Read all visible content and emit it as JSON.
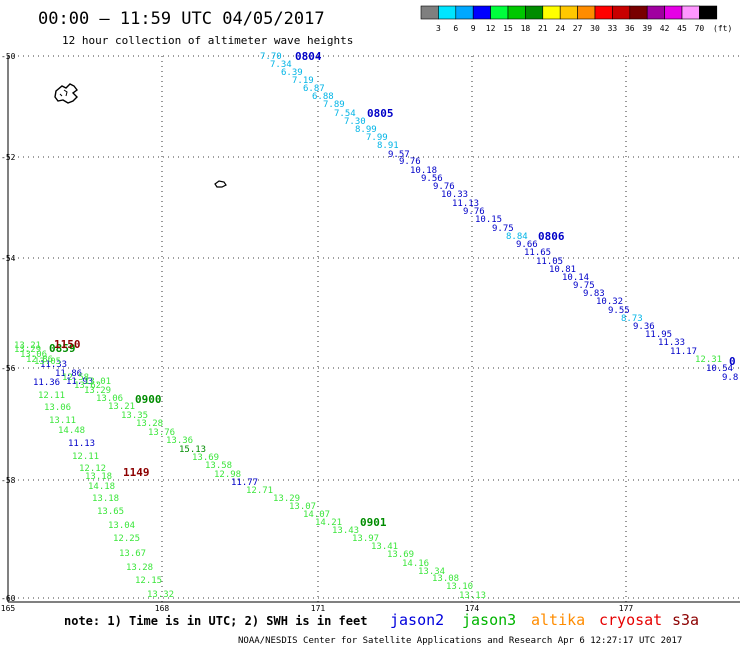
{
  "header": {
    "title": "00:00 — 11:59 UTC 04/05/2017",
    "subtitle": "12 hour collection of altimeter wave heights"
  },
  "legend": {
    "unit": "(ft)",
    "bins": [
      {
        "label": "3",
        "color": "#7f7f7f"
      },
      {
        "label": "6",
        "color": "#00e5ff"
      },
      {
        "label": "9",
        "color": "#00a8ff"
      },
      {
        "label": "12",
        "color": "#0000ff"
      },
      {
        "label": "15",
        "color": "#00ff3c"
      },
      {
        "label": "18",
        "color": "#00c800"
      },
      {
        "label": "21",
        "color": "#008c00"
      },
      {
        "label": "24",
        "color": "#ffff00"
      },
      {
        "label": "27",
        "color": "#ffc800"
      },
      {
        "label": "30",
        "color": "#ff8c00"
      },
      {
        "label": "33",
        "color": "#ff0000"
      },
      {
        "label": "36",
        "color": "#c80000"
      },
      {
        "label": "39",
        "color": "#780000"
      },
      {
        "label": "42",
        "color": "#a000a0"
      },
      {
        "label": "45",
        "color": "#e600e6"
      },
      {
        "label": "70",
        "color": "#ff96ff"
      },
      {
        "label": "",
        "color": "#000000"
      }
    ]
  },
  "axes": {
    "lat_labels": [
      "-50",
      "-52",
      "-54",
      "-56",
      "-58",
      "-60"
    ],
    "lon_labels": [
      "165",
      "168",
      "171",
      "174",
      "177"
    ]
  },
  "tracks": [
    {
      "name": "track-0804",
      "time_labels": [
        {
          "text": "0804",
          "color": "#0000c8"
        },
        {
          "text": "0805",
          "color": "#0000c8"
        },
        {
          "text": "0806",
          "color": "#0000c8"
        },
        {
          "text": "0",
          "color": "#0000c8"
        }
      ],
      "observations": [
        {
          "text": "7.70",
          "color": "#00b4e6"
        },
        {
          "text": "7.34",
          "color": "#00b4e6"
        },
        {
          "text": "6.39",
          "color": "#00b4e6"
        },
        {
          "text": "7.19",
          "color": "#00b4e6"
        },
        {
          "text": "6.87",
          "color": "#00b4e6"
        },
        {
          "text": "6.88",
          "color": "#00b4e6"
        },
        {
          "text": "7.89",
          "color": "#00b4e6"
        },
        {
          "text": "7.54",
          "color": "#00b4e6"
        },
        {
          "text": "7.30",
          "color": "#00b4e6"
        },
        {
          "text": "8.99",
          "color": "#00b4e6"
        },
        {
          "text": "7.99",
          "color": "#00b4e6"
        },
        {
          "text": "8.91",
          "color": "#00b4e6"
        },
        {
          "text": "9.57",
          "color": "#0000c8"
        },
        {
          "text": "9.76",
          "color": "#0000c8"
        },
        {
          "text": "10.18",
          "color": "#0000c8"
        },
        {
          "text": "9.56",
          "color": "#0000c8"
        },
        {
          "text": "9.76",
          "color": "#0000c8"
        },
        {
          "text": "10.33",
          "color": "#0000c8"
        },
        {
          "text": "11.13",
          "color": "#0000c8"
        },
        {
          "text": "9.76",
          "color": "#0000c8"
        },
        {
          "text": "10.15",
          "color": "#0000c8"
        },
        {
          "text": "9.75",
          "color": "#0000c8"
        },
        {
          "text": "8.84",
          "color": "#00b4e6"
        },
        {
          "text": "9.66",
          "color": "#0000c8"
        },
        {
          "text": "11.65",
          "color": "#0000c8"
        },
        {
          "text": "11.05",
          "color": "#0000c8"
        },
        {
          "text": "10.81",
          "color": "#0000c8"
        },
        {
          "text": "10.14",
          "color": "#0000c8"
        },
        {
          "text": "9.75",
          "color": "#0000c8"
        },
        {
          "text": "9.83",
          "color": "#0000c8"
        },
        {
          "text": "10.32",
          "color": "#0000c8"
        },
        {
          "text": "9.55",
          "color": "#0000c8"
        },
        {
          "text": "8.73",
          "color": "#00b4e6"
        },
        {
          "text": "9.36",
          "color": "#0000c8"
        },
        {
          "text": "11.95",
          "color": "#0000c8"
        },
        {
          "text": "11.33",
          "color": "#0000c8"
        },
        {
          "text": "11.17",
          "color": "#0000c8"
        },
        {
          "text": "12.31",
          "color": "#3ce63c"
        },
        {
          "text": "10.54",
          "color": "#0000c8"
        },
        {
          "text": "9.8",
          "color": "#0000c8"
        }
      ]
    },
    {
      "name": "track-0900",
      "time_labels": [
        {
          "text": "0859",
          "color": "#008c00"
        },
        {
          "text": "0900",
          "color": "#008c00"
        },
        {
          "text": "0901",
          "color": "#008c00"
        }
      ],
      "observations": [
        {
          "text": "13.06",
          "color": "#3ce63c"
        },
        {
          "text": "13.21",
          "color": "#3ce63c"
        },
        {
          "text": "13.35",
          "color": "#3ce63c"
        },
        {
          "text": "13.28",
          "color": "#3ce63c"
        },
        {
          "text": "13.76",
          "color": "#3ce63c"
        },
        {
          "text": "13.36",
          "color": "#3ce63c"
        },
        {
          "text": "15.13",
          "color": "#008c00"
        },
        {
          "text": "13.69",
          "color": "#3ce63c"
        },
        {
          "text": "13.58",
          "color": "#3ce63c"
        },
        {
          "text": "12.98",
          "color": "#3ce63c"
        },
        {
          "text": "11.77",
          "color": "#0000c8"
        },
        {
          "text": "12.71",
          "color": "#3ce63c"
        },
        {
          "text": "13.29",
          "color": "#3ce63c"
        },
        {
          "text": "13.07",
          "color": "#3ce63c"
        },
        {
          "text": "14.07",
          "color": "#3ce63c"
        },
        {
          "text": "14.21",
          "color": "#3ce63c"
        },
        {
          "text": "13.43",
          "color": "#3ce63c"
        },
        {
          "text": "13.97",
          "color": "#3ce63c"
        },
        {
          "text": "13.41",
          "color": "#3ce63c"
        },
        {
          "text": "13.69",
          "color": "#3ce63c"
        },
        {
          "text": "14.16",
          "color": "#3ce63c"
        },
        {
          "text": "13.34",
          "color": "#3ce63c"
        },
        {
          "text": "13.08",
          "color": "#3ce63c"
        },
        {
          "text": "13.10",
          "color": "#3ce63c"
        },
        {
          "text": "13.13",
          "color": "#3ce63c"
        }
      ]
    },
    {
      "name": "track-1149",
      "time_labels": [
        {
          "text": "1150",
          "color": "#8c0000"
        },
        {
          "text": "1149",
          "color": "#8c0000"
        }
      ],
      "observations": [
        {
          "text": "13.21",
          "color": "#3ce63c"
        },
        {
          "text": "11.33",
          "color": "#0000c8"
        },
        {
          "text": "11.86",
          "color": "#0000c8"
        },
        {
          "text": "11.36",
          "color": "#0000c8"
        },
        {
          "text": "12.11",
          "color": "#3ce63c"
        },
        {
          "text": "13.06",
          "color": "#3ce63c"
        },
        {
          "text": "13.11",
          "color": "#3ce63c"
        },
        {
          "text": "14.48",
          "color": "#3ce63c"
        },
        {
          "text": "11.13",
          "color": "#0000c8"
        },
        {
          "text": "12.11",
          "color": "#3ce63c"
        },
        {
          "text": "12.12",
          "color": "#3ce63c"
        },
        {
          "text": "13.18",
          "color": "#3ce63c"
        },
        {
          "text": "14.18",
          "color": "#3ce63c"
        },
        {
          "text": "13.18",
          "color": "#3ce63c"
        },
        {
          "text": "13.65",
          "color": "#3ce63c"
        },
        {
          "text": "13.04",
          "color": "#3ce63c"
        },
        {
          "text": "12.25",
          "color": "#3ce63c"
        },
        {
          "text": "13.67",
          "color": "#3ce63c"
        },
        {
          "text": "13.28",
          "color": "#3ce63c"
        },
        {
          "text": "12.15",
          "color": "#3ce63c"
        },
        {
          "text": "13.32",
          "color": "#3ce63c"
        }
      ]
    },
    {
      "name": "track-cluster",
      "time_labels": [],
      "observations": [
        {
          "text": "13.29",
          "color": "#3ce63c"
        },
        {
          "text": "13.06",
          "color": "#3ce63c"
        },
        {
          "text": "12.86",
          "color": "#3ce63c"
        },
        {
          "text": "13.05",
          "color": "#3ce63c"
        },
        {
          "text": "12.58",
          "color": "#3ce63c"
        },
        {
          "text": "11.93",
          "color": "#0000c8"
        },
        {
          "text": "13.62",
          "color": "#3ce63c"
        },
        {
          "text": "13.29",
          "color": "#3ce63c"
        },
        {
          "text": "13.01",
          "color": "#3ce63c"
        }
      ]
    }
  ],
  "footer": {
    "note": "note: 1) Time is in UTC; 2) SWH is in feet",
    "satellites": [
      {
        "text": "jason2",
        "color": "#0000dc"
      },
      {
        "text": "jason3",
        "color": "#00b400"
      },
      {
        "text": "altika",
        "color": "#ff8c00"
      },
      {
        "text": "cryosat",
        "color": "#e60000"
      },
      {
        "text": "s3a",
        "color": "#8c0000"
      }
    ],
    "credit": "NOAA/NESDIS Center for Satellite Applications and Research    Apr  6 12:27:17 UTC 2017"
  }
}
